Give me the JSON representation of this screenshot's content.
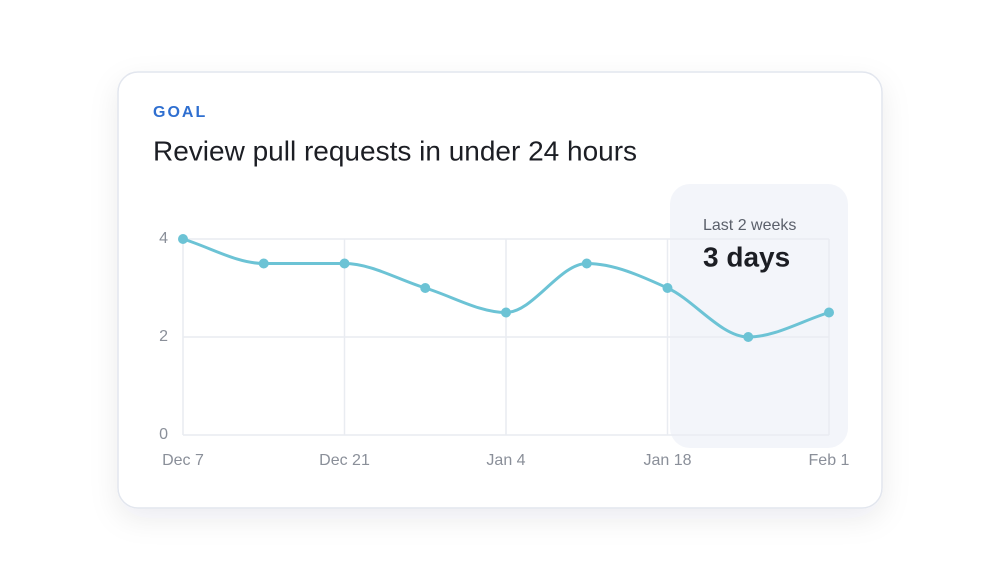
{
  "chart_data": {
    "type": "line",
    "eyebrow": "GOAL",
    "title": "Review pull requests in under 24 hours",
    "categories": [
      "Dec 7",
      null,
      "Dec 21",
      null,
      "Jan 4",
      null,
      "Jan 18",
      null,
      "Feb 1"
    ],
    "values": [
      4,
      3.5,
      3.5,
      3,
      2.5,
      3.5,
      3,
      2,
      2.5
    ],
    "color": "#6cc3d5",
    "ylim": [
      0,
      4
    ],
    "yticks": [
      0,
      2,
      4
    ],
    "grid": true,
    "highlight": {
      "label": "Last 2 weeks",
      "value": "3 days"
    }
  }
}
